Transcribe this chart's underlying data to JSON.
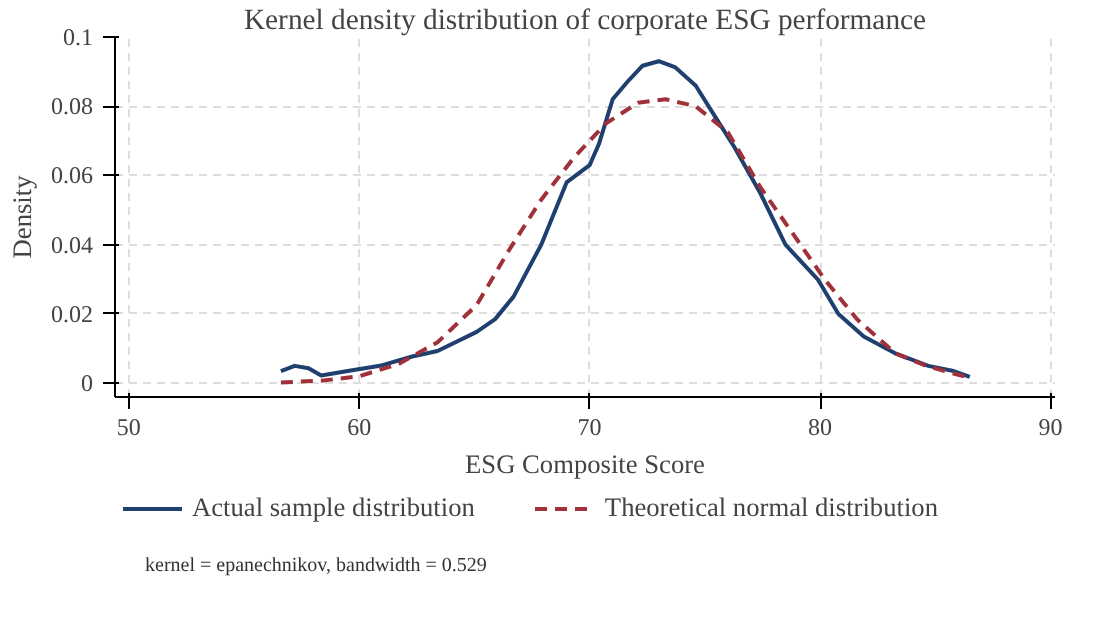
{
  "chart_data": {
    "type": "line",
    "title": "Kernel density distribution of corporate ESG performance",
    "xlabel": "ESG Composite Score",
    "ylabel": "Density",
    "xlim": [
      49.4,
      90.2
    ],
    "ylim": [
      -0.004,
      0.1
    ],
    "xticks": [
      50,
      60,
      70,
      80,
      90
    ],
    "yticks": [
      0,
      0.02,
      0.04,
      0.06,
      0.08,
      0.1
    ],
    "grid": true,
    "legend": "bottom",
    "marker": "none",
    "annotations": [
      "kernel = epanechnikov, bandwidth = 0.529"
    ],
    "series": [
      {
        "name": "Actual sample distribution",
        "color": "#1f3f6e",
        "line_style": "solid",
        "x": [
          56.6,
          57.2,
          57.8,
          58.35,
          59.5,
          60.9,
          62.3,
          63.4,
          65.1,
          65.9,
          66.7,
          67.9,
          69.0,
          70.0,
          70.4,
          71.0,
          71.7,
          72.3,
          73.0,
          73.7,
          74.6,
          75.4,
          76.3,
          77.4,
          78.5,
          79.9,
          80.8,
          81.9,
          83.3,
          84.7,
          85.8,
          86.5
        ],
        "values": [
          0.0035,
          0.005,
          0.0043,
          0.0022,
          0.0035,
          0.005,
          0.0077,
          0.0093,
          0.0148,
          0.0185,
          0.025,
          0.04,
          0.058,
          0.063,
          0.069,
          0.082,
          0.0875,
          0.0917,
          0.093,
          0.0913,
          0.086,
          0.0775,
          0.068,
          0.055,
          0.04,
          0.03,
          0.02,
          0.0135,
          0.0085,
          0.005,
          0.0035,
          0.0018
        ]
      },
      {
        "name": "Theoretical normal distribution",
        "color": "#a0303a",
        "line_style": "dashed",
        "x": [
          56.6,
          58.35,
          60.0,
          61.7,
          63.4,
          65.1,
          66.5,
          67.9,
          69.3,
          70.7,
          72.1,
          73.3,
          74.6,
          76.0,
          77.4,
          78.8,
          80.2,
          81.6,
          83.3,
          84.7,
          86.5
        ],
        "values": [
          0.0002,
          0.0007,
          0.002,
          0.0055,
          0.0118,
          0.0226,
          0.0384,
          0.053,
          0.065,
          0.075,
          0.081,
          0.082,
          0.08,
          0.0725,
          0.0567,
          0.0434,
          0.03,
          0.0185,
          0.0085,
          0.0048,
          0.0015
        ]
      }
    ]
  }
}
